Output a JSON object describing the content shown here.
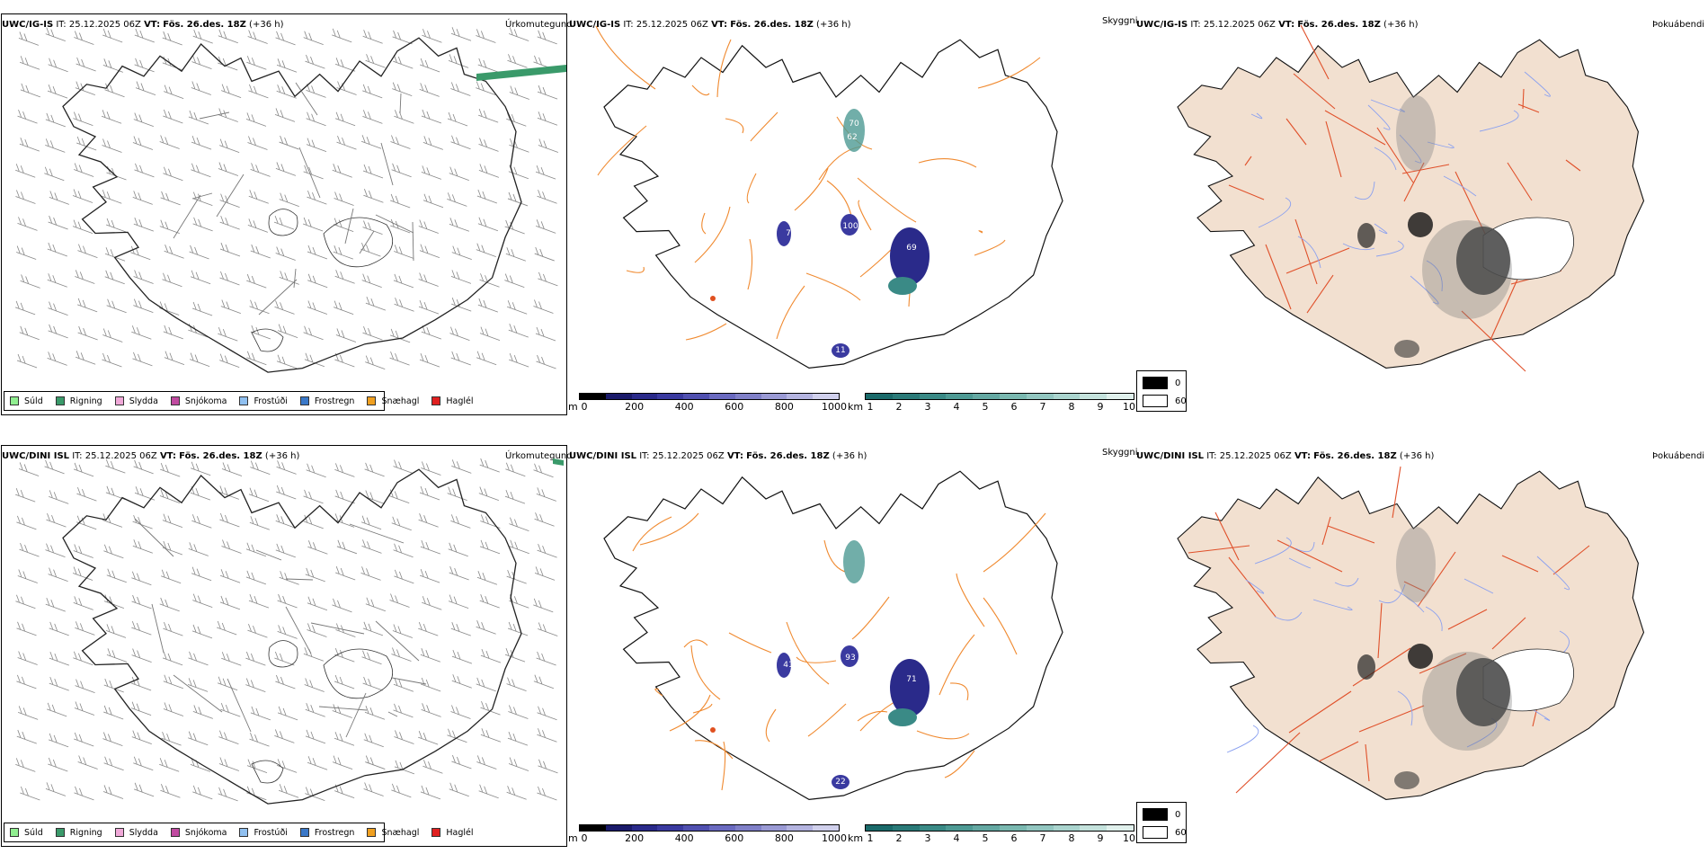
{
  "rows": [
    {
      "model": "UWC/IG-IS",
      "it_label": "IT:",
      "it_value": "25.12.2025 06Z",
      "vt_label": "VT:",
      "vt_value": "Fös. 26.des. 18Z",
      "lead": "(+36 h)",
      "labels": {
        "precip": "Úrkomutegund",
        "visibility": "Skyggni",
        "fog": "Þokuábendi"
      },
      "vis_values": [
        "70",
        "62",
        "100",
        "69",
        "11",
        "7"
      ]
    },
    {
      "model": "UWC/DINI ISL",
      "it_label": "IT:",
      "it_value": "25.12.2025 06Z",
      "vt_label": "VT:",
      "vt_value": "Fös. 26.des. 18Z",
      "lead": "(+36 h)",
      "labels": {
        "precip": "Úrkomutegund",
        "visibility": "Skyggni",
        "fog": "Þokuábendi"
      },
      "vis_values": [
        "93",
        "71",
        "22",
        "41"
      ]
    }
  ],
  "precip_legend": [
    {
      "label": "Súld",
      "color": "#90ee90"
    },
    {
      "label": "Rigning",
      "color": "#3a9a6a"
    },
    {
      "label": "Slydda",
      "color": "#f0a8d8"
    },
    {
      "label": "Snjókoma",
      "color": "#c04aa0"
    },
    {
      "label": "Frostúði",
      "color": "#90c0f0"
    },
    {
      "label": "Frostregn",
      "color": "#3a78c8"
    },
    {
      "label": "Snæhagl",
      "color": "#f0a020"
    },
    {
      "label": "Haglél",
      "color": "#e02020"
    }
  ],
  "height_bar": {
    "unit": "m",
    "ticks": [
      "0",
      "200",
      "400",
      "600",
      "800",
      "1000"
    ],
    "colors": [
      "#000000",
      "#1a1a6a",
      "#2a2a8a",
      "#3a3aa0",
      "#5050b0",
      "#6a6ac0",
      "#8080c8",
      "#9a9ad4",
      "#b4b4e0",
      "#d0d0ec"
    ]
  },
  "km_bar": {
    "unit": "km",
    "ticks": [
      "1",
      "2",
      "3",
      "4",
      "5",
      "6",
      "7",
      "8",
      "9",
      "10"
    ],
    "colors": [
      "#1a6a6a",
      "#2a7a78",
      "#3a8a86",
      "#4e9a94",
      "#64a8a2",
      "#7ab8b0",
      "#92c6c0",
      "#aad4ce",
      "#c4e2dc",
      "#e0f0ec"
    ]
  },
  "cloud_legend": [
    {
      "label": "0",
      "color": "#000000"
    },
    {
      "label": "60",
      "color": "#ffffff"
    }
  ]
}
